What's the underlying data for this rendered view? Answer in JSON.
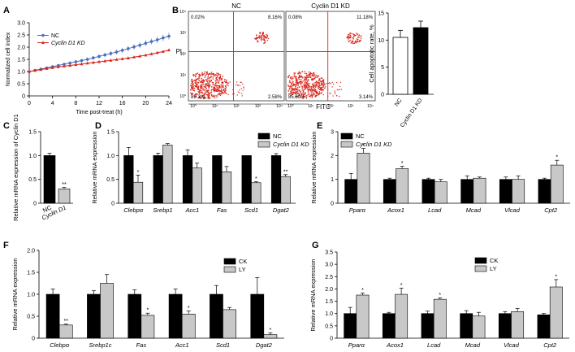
{
  "panels": {
    "A": {
      "letter": "A",
      "type": "line",
      "xlabel": "Time post-treat (h)",
      "ylabel": "Normalized cell index",
      "xlim": [
        0,
        24
      ],
      "ylim": [
        0,
        3.0
      ],
      "x_ticks": [
        "0",
        "4",
        "8",
        "12",
        "16",
        "20",
        "24"
      ],
      "y_ticks": [
        "0",
        "0.5",
        "1.0",
        "1.5",
        "2.0",
        "2.5",
        "3.0"
      ],
      "legend": [
        "NC",
        "Cyclin D1 KD"
      ],
      "series": [
        {
          "name": "NC",
          "color": "#4a6fc1",
          "marker": "circle",
          "x": [
            0,
            1,
            2,
            3,
            4,
            5,
            6,
            7,
            8,
            9,
            10,
            11,
            12,
            13,
            14,
            15,
            16,
            17,
            18,
            19,
            20,
            21,
            22,
            23,
            24
          ],
          "y": [
            1.0,
            1.05,
            1.1,
            1.15,
            1.2,
            1.25,
            1.3,
            1.35,
            1.4,
            1.45,
            1.5,
            1.56,
            1.62,
            1.68,
            1.74,
            1.8,
            1.87,
            1.94,
            2.01,
            2.08,
            2.16,
            2.23,
            2.3,
            2.38,
            2.45
          ],
          "err": [
            0,
            0.02,
            0.03,
            0.04,
            0.05,
            0.05,
            0.06,
            0.06,
            0.07,
            0.07,
            0.08,
            0.08,
            0.09,
            0.09,
            0.1,
            0.1,
            0.1,
            0.11,
            0.11,
            0.12,
            0.12,
            0.12,
            0.13,
            0.13,
            0.14
          ]
        },
        {
          "name": "Cyclin D1 KD",
          "color": "#d9261c",
          "marker": "triangle",
          "x": [
            0,
            1,
            2,
            3,
            4,
            5,
            6,
            7,
            8,
            9,
            10,
            11,
            12,
            13,
            14,
            15,
            16,
            17,
            18,
            19,
            20,
            21,
            22,
            23,
            24
          ],
          "y": [
            1.0,
            1.04,
            1.08,
            1.12,
            1.16,
            1.19,
            1.22,
            1.25,
            1.28,
            1.31,
            1.34,
            1.37,
            1.4,
            1.43,
            1.46,
            1.49,
            1.52,
            1.55,
            1.59,
            1.63,
            1.67,
            1.72,
            1.77,
            1.82,
            1.88
          ],
          "err": [
            0,
            0.01,
            0.01,
            0.01,
            0.02,
            0.02,
            0.02,
            0.02,
            0.02,
            0.02,
            0.02,
            0.02,
            0.02,
            0.02,
            0.02,
            0.02,
            0.02,
            0.02,
            0.02,
            0.02,
            0.02,
            0.02,
            0.02,
            0.02,
            0.03
          ]
        }
      ]
    },
    "B": {
      "letter": "B",
      "flow": [
        {
          "title": "NC",
          "ul": "0.02%",
          "ur": "8.16%",
          "ll": "89.2%",
          "lr": "2.58%"
        },
        {
          "title": "Cyclin D1 KD",
          "ul": "0.08%",
          "ur": "11.18%",
          "ll": "85.60%",
          "lr": "3.14%"
        }
      ],
      "flow_axis": {
        "y_label": "PI",
        "x_label": "FITC",
        "ticks": [
          "10⁰",
          "10¹",
          "10²",
          "10³",
          "10⁴"
        ]
      },
      "bar": {
        "type": "bar",
        "ylabel": "Cell apoptotic rate, %",
        "ylim": [
          0,
          15
        ],
        "y_ticks": [
          "0",
          "5",
          "10",
          "15"
        ],
        "categories": [
          "NC",
          "Cyclin D1 KD"
        ],
        "values": [
          10.5,
          12.3
        ],
        "errors": [
          1.3,
          1.2
        ],
        "colors": [
          "#ffffff",
          "#000000"
        ]
      }
    },
    "C": {
      "letter": "C",
      "type": "bar",
      "ylabel": "Relative mRNA expression of Cyclin D1",
      "ylim": [
        0,
        1.5
      ],
      "y_ticks": [
        "0",
        "0.5",
        "1.0",
        "1.5"
      ],
      "categories": [
        "NC",
        "Cyclin D1"
      ],
      "values": [
        1.0,
        0.3
      ],
      "errors": [
        0.05,
        0.03
      ],
      "colors": [
        "#000000",
        "#c8c8c8"
      ],
      "sig": [
        "",
        "**"
      ]
    },
    "D": {
      "letter": "D",
      "type": "bar",
      "ylabel": "Relative mRNA expression",
      "ylim": [
        0,
        1.5
      ],
      "y_ticks": [
        "0",
        "0.5",
        "1.0",
        "1.5"
      ],
      "categories": [
        "Clebpα",
        "Srebp1",
        "Acc1",
        "Fas",
        "Scd1",
        "Dgat2"
      ],
      "legend": [
        "NC",
        "Cyclin D1 KD"
      ],
      "series": [
        {
          "name": "NC",
          "color": "#000000",
          "values": [
            1.0,
            1.0,
            1.0,
            1.0,
            1.0,
            1.0
          ],
          "errors": [
            0.17,
            0.05,
            0.12,
            0.0,
            0.0,
            0.04
          ],
          "sig": [
            "",
            "",
            "",
            "",
            "",
            ""
          ]
        },
        {
          "name": "Cyclin D1 KD",
          "color": "#c8c8c8",
          "values": [
            0.44,
            1.22,
            0.74,
            0.66,
            0.43,
            0.56
          ],
          "errors": [
            0.15,
            0.03,
            0.1,
            0.11,
            0.02,
            0.04
          ],
          "sig": [
            "*",
            "",
            "",
            "",
            "*",
            "**"
          ]
        }
      ]
    },
    "E": {
      "letter": "E",
      "type": "bar",
      "ylabel": "Relative mRNA expression",
      "ylim": [
        0,
        3
      ],
      "y_ticks": [
        "0",
        "1",
        "2",
        "3"
      ],
      "categories": [
        "Pparα",
        "Acox1",
        "Lcad",
        "Mcad",
        "Vlcad",
        "Cpt2"
      ],
      "legend": [
        "NC",
        "Cyclin D1 KD"
      ],
      "series": [
        {
          "name": "NC",
          "color": "#000000",
          "values": [
            1.0,
            1.0,
            1.0,
            1.0,
            1.0,
            1.0
          ],
          "errors": [
            0.25,
            0.05,
            0.05,
            0.15,
            0.1,
            0.05
          ],
          "sig": [
            "",
            "",
            "",
            "",
            "",
            ""
          ]
        },
        {
          "name": "Cyclin D1 KD",
          "color": "#c8c8c8",
          "values": [
            2.1,
            1.45,
            0.9,
            1.05,
            1.0,
            1.6
          ],
          "errors": [
            0.2,
            0.1,
            0.1,
            0.05,
            0.15,
            0.2
          ],
          "sig": [
            "*",
            "*",
            "",
            "",
            "",
            "*"
          ]
        }
      ]
    },
    "F": {
      "letter": "F",
      "type": "bar",
      "ylabel": "Relative mRNA expression",
      "ylim": [
        0,
        2.0
      ],
      "y_ticks": [
        "0",
        "0.5",
        "1.0",
        "1.5",
        "2.0"
      ],
      "categories": [
        "Clebpα",
        "Srebp1c",
        "Fas",
        "Acc1",
        "Scd1",
        "Dgat2"
      ],
      "legend": [
        "CK",
        "LY"
      ],
      "series": [
        {
          "name": "CK",
          "color": "#000000",
          "values": [
            1.0,
            1.0,
            1.0,
            1.0,
            1.0,
            1.0
          ],
          "errors": [
            0.12,
            0.08,
            0.1,
            0.12,
            0.2,
            0.38
          ],
          "sig": [
            "",
            "",
            "",
            "",
            "",
            ""
          ]
        },
        {
          "name": "LY",
          "color": "#c8c8c8",
          "values": [
            0.3,
            1.25,
            0.52,
            0.55,
            0.65,
            0.08
          ],
          "errors": [
            0.02,
            0.2,
            0.05,
            0.07,
            0.05,
            0.04
          ],
          "sig": [
            "**",
            "",
            "*",
            "*",
            "",
            "*"
          ]
        }
      ]
    },
    "G": {
      "letter": "G",
      "type": "bar",
      "ylabel": "Relative mRNA expression",
      "ylim": [
        0,
        3.5
      ],
      "y_ticks": [
        "0",
        "0.5",
        "1.0",
        "1.5",
        "2.0",
        "2.5",
        "3.0",
        "3.5"
      ],
      "categories": [
        "Pparα",
        "Acox1",
        "Lcad",
        "Mcad",
        "Vlcad",
        "Cpt2"
      ],
      "legend": [
        "CK",
        "LY"
      ],
      "series": [
        {
          "name": "CK",
          "color": "#000000",
          "values": [
            1.0,
            1.0,
            1.0,
            1.0,
            1.0,
            0.95
          ],
          "errors": [
            0.25,
            0.05,
            0.1,
            0.12,
            0.08,
            0.05
          ],
          "sig": [
            "",
            "",
            "",
            "",
            "",
            ""
          ]
        },
        {
          "name": "LY",
          "color": "#c8c8c8",
          "values": [
            1.75,
            1.78,
            1.58,
            0.9,
            1.08,
            2.08
          ],
          "errors": [
            0.08,
            0.25,
            0.06,
            0.15,
            0.12,
            0.3
          ],
          "sig": [
            "*",
            "*",
            "*",
            "",
            "",
            "*"
          ]
        }
      ]
    }
  }
}
